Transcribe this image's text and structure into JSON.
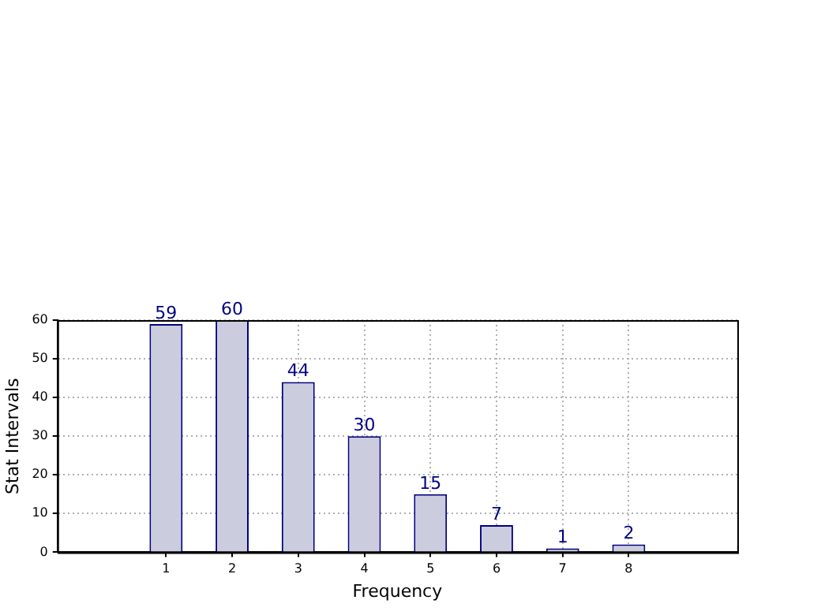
{
  "chart_data": {
    "type": "bar",
    "xlabel": "Frequency",
    "ylabel": "Stat Intervals",
    "categories": [
      "1",
      "2",
      "3",
      "4",
      "5",
      "6",
      "7",
      "8"
    ],
    "values": [
      59,
      60,
      44,
      30,
      15,
      7,
      1,
      2
    ],
    "color": "#ccccdf",
    "ylim": [
      0,
      60
    ],
    "yticks": [
      0,
      10,
      20,
      30,
      40,
      50,
      60
    ],
    "grid": true,
    "data_labels": true,
    "legend": false
  }
}
